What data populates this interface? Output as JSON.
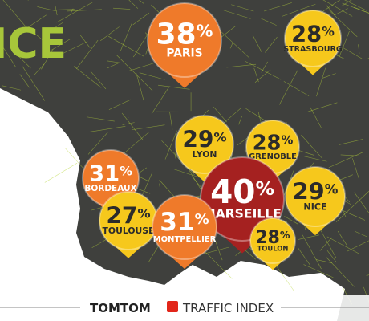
{
  "header": {
    "title": "ICE"
  },
  "unit": "%",
  "pins": [
    {
      "value": "38",
      "city": "PARIS"
    },
    {
      "value": "28",
      "city": "STRASBOURG"
    },
    {
      "value": "29",
      "city": "LYON"
    },
    {
      "value": "28",
      "city": "GRENOBLE"
    },
    {
      "value": "31",
      "city": "BORDEAUX"
    },
    {
      "value": "40",
      "city": "MARSEILLE"
    },
    {
      "value": "29",
      "city": "NICE"
    },
    {
      "value": "27",
      "city": "TOULOUSE"
    },
    {
      "value": "31",
      "city": "MONTPELLIER"
    },
    {
      "value": "28",
      "city": "TOULON"
    }
  ],
  "footer": {
    "brand": "TOMTOM",
    "label": "TRAFFIC INDEX"
  }
}
